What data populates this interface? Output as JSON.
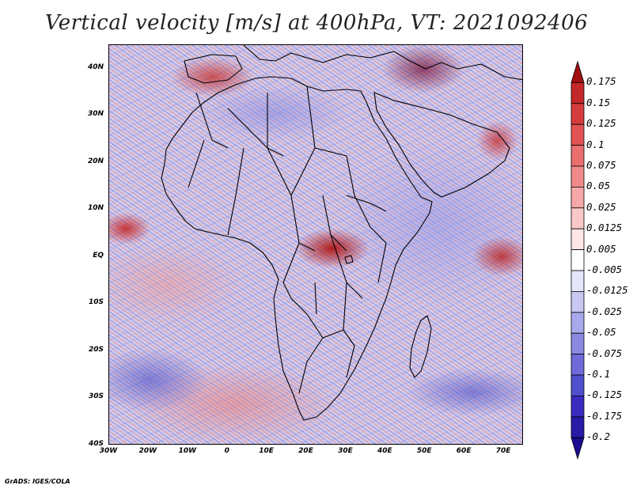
{
  "title": "Vertical velocity [m/s] at 400hPa, VT: 2021092406",
  "credit": "GrADS: IGES/COLA",
  "colors": {
    "positive_peak": "#b01818",
    "negative_peak": "#2a1aa8",
    "neutral": "#ffffff"
  },
  "map": {
    "name": "africa-vertical-velocity-map",
    "lon_range": [
      -30,
      75
    ],
    "lat_range": [
      -40,
      45
    ],
    "lat_labels": [
      "40N",
      "30N",
      "20N",
      "10N",
      "EQ",
      "10S",
      "20S",
      "30S",
      "40S"
    ],
    "lon_labels": [
      "30W",
      "20W",
      "10W",
      "0",
      "10E",
      "20E",
      "30E",
      "40E",
      "50E",
      "60E",
      "70E"
    ],
    "lat_values": [
      40,
      30,
      20,
      10,
      0,
      -10,
      -20,
      -30,
      -40
    ],
    "lon_values": [
      -30,
      -20,
      -10,
      0,
      10,
      20,
      30,
      40,
      50,
      60,
      70
    ]
  },
  "colorbar": {
    "levels": [
      "0.175",
      "0.15",
      "0.125",
      "0.1",
      "0.075",
      "0.05",
      "0.025",
      "0.0125",
      "0.005",
      "-0.005",
      "-0.0125",
      "-0.025",
      "-0.05",
      "-0.075",
      "-0.1",
      "-0.125",
      "-0.175",
      "-0.2"
    ],
    "colors": [
      "#a01010",
      "#c42828",
      "#d63c3c",
      "#e25454",
      "#ea7070",
      "#f08a8a",
      "#f6a8a8",
      "#fac8c8",
      "#ffe6e6",
      "#ffffff",
      "#e6e6fa",
      "#c8c8f2",
      "#a8a8ec",
      "#8a8ae4",
      "#6e6ada",
      "#5050ce",
      "#3a2cc0",
      "#2a1aa8",
      "#1c0c90"
    ]
  }
}
